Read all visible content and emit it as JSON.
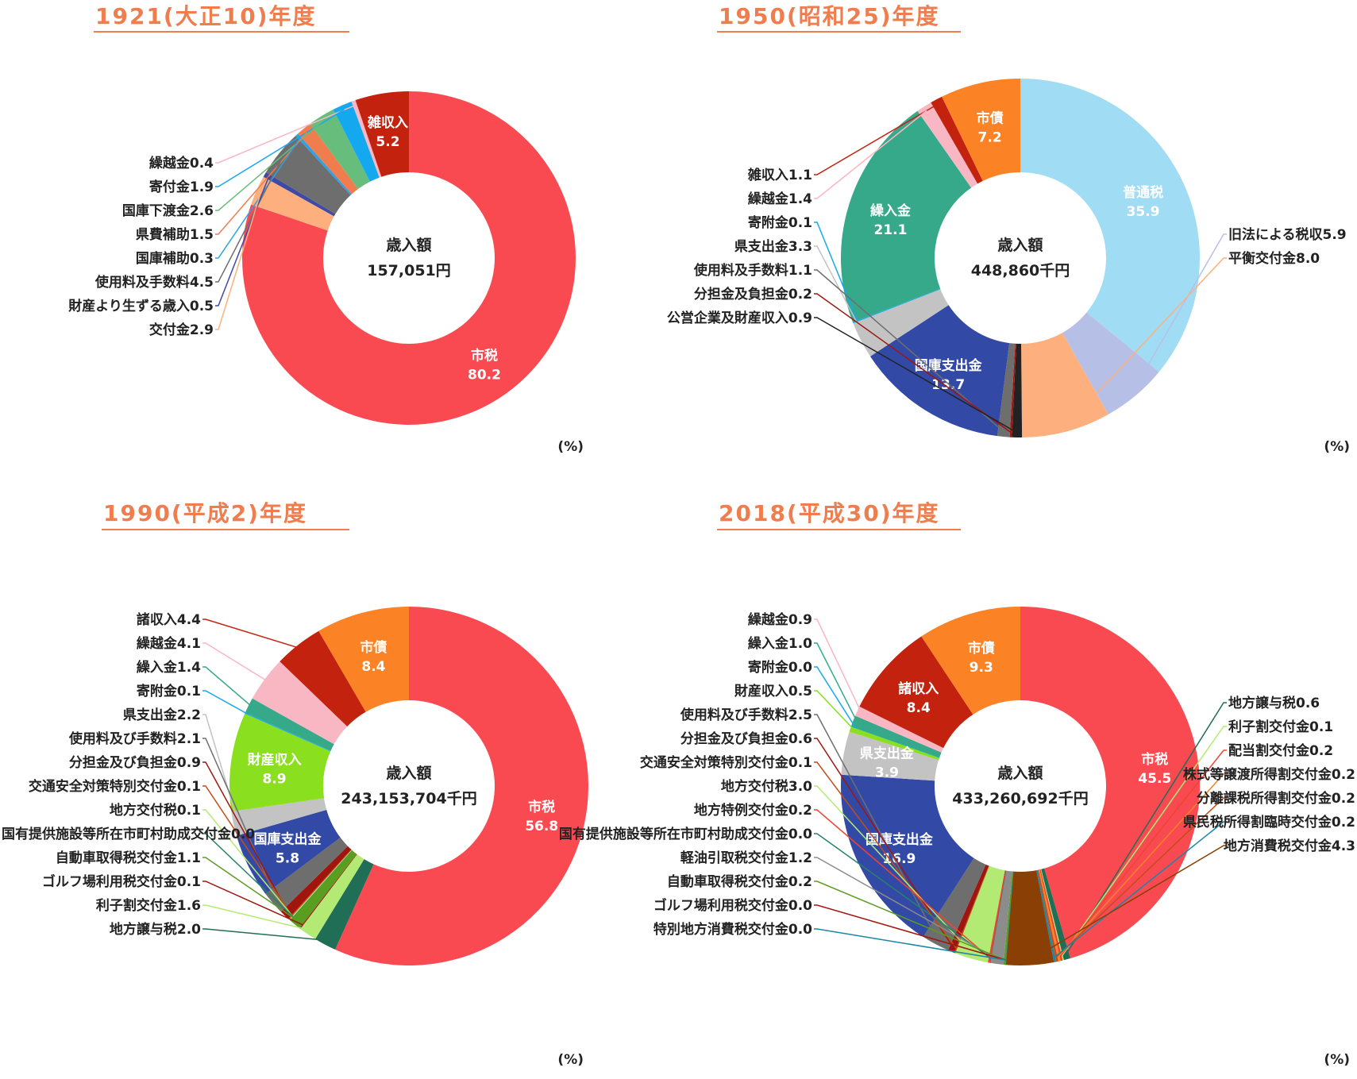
{
  "chart_data": [
    {
      "type": "pie",
      "title": "1921(大正10)年度",
      "center_label": "歳入額",
      "center_value": "157,051円",
      "unit": "(%)",
      "slices": [
        {
          "name": "市税",
          "value": 80.2,
          "color": "#f94a52",
          "inside": true
        },
        {
          "name": "交付金",
          "value": 2.9,
          "color": "#fdb07e"
        },
        {
          "name": "財産より生ずる歳入",
          "value": 0.5,
          "color": "#3f4aa6"
        },
        {
          "name": "使用料及手数料",
          "value": 4.5,
          "color": "#6e6e6e"
        },
        {
          "name": "国庫補助",
          "value": 0.3,
          "color": "#2ba3e4"
        },
        {
          "name": "県費補助",
          "value": 1.5,
          "color": "#ef7d4e"
        },
        {
          "name": "国庫下渡金",
          "value": 2.6,
          "color": "#67bd7c"
        },
        {
          "name": "寄付金",
          "value": 1.9,
          "color": "#14a9ee"
        },
        {
          "name": "繰越金",
          "value": 0.4,
          "color": "#f9b6c3"
        },
        {
          "name": "雑収入",
          "value": 5.2,
          "color": "#c3220f",
          "inside": true
        }
      ]
    },
    {
      "type": "pie",
      "title": "1950(昭和25)年度",
      "center_label": "歳入額",
      "center_value": "448,860千円",
      "unit": "(%)",
      "slices": [
        {
          "name": "普通税",
          "value": 35.9,
          "color": "#a1dcf5",
          "inside": true
        },
        {
          "name": "旧法による税収",
          "value": 5.9,
          "color": "#b6c0e6"
        },
        {
          "name": "平衡交付金",
          "value": 8.0,
          "color": "#fdb07e"
        },
        {
          "name": "公営企業及財産収入",
          "value": 0.9,
          "color": "#222222"
        },
        {
          "name": "分担金及負担金",
          "value": 0.2,
          "color": "#a0160f"
        },
        {
          "name": "使用料及手数料",
          "value": 1.1,
          "color": "#6e6e6e"
        },
        {
          "name": "国庫支出金",
          "value": 13.7,
          "color": "#3349a6",
          "inside": true
        },
        {
          "name": "県支出金",
          "value": 3.3,
          "color": "#c3c3c3"
        },
        {
          "name": "寄附金",
          "value": 0.1,
          "color": "#14a9ee"
        },
        {
          "name": "繰入金",
          "value": 21.1,
          "color": "#35a98a",
          "inside": true
        },
        {
          "name": "繰越金",
          "value": 1.4,
          "color": "#f9b6c3"
        },
        {
          "name": "雑収入",
          "value": 1.1,
          "color": "#c3220f"
        },
        {
          "name": "市債",
          "value": 7.2,
          "color": "#fc8226",
          "inside": true
        }
      ]
    },
    {
      "type": "pie",
      "title": "1990(平成2)年度",
      "center_label": "歳入額",
      "center_value": "243,153,704千円",
      "unit": "(%)",
      "slices": [
        {
          "name": "市税",
          "value": 56.8,
          "color": "#f94a52",
          "inside": true
        },
        {
          "name": "地方譲与税",
          "value": 2.0,
          "color": "#216e57"
        },
        {
          "name": "利子割交付金",
          "value": 1.6,
          "color": "#b3ea74"
        },
        {
          "name": "ゴルフ場利用税交付金",
          "value": 0.1,
          "color": "#a0160f"
        },
        {
          "name": "自動車取得税交付金",
          "value": 1.1,
          "color": "#5a9e20"
        },
        {
          "name": "国有提供施設等所在市町村助成交付金",
          "value": 0.0,
          "color": "#268268"
        },
        {
          "name": "地方交付税",
          "value": 0.1,
          "color": "#b3ea74"
        },
        {
          "name": "交通安全対策特別交付金",
          "value": 0.1,
          "color": "#c24d16"
        },
        {
          "name": "分担金及び負担金",
          "value": 0.9,
          "color": "#a0160f"
        },
        {
          "name": "使用料及び手数料",
          "value": 2.1,
          "color": "#6e6e6e"
        },
        {
          "name": "国庫支出金",
          "value": 5.8,
          "color": "#3349a6",
          "inside": true
        },
        {
          "name": "県支出金",
          "value": 2.2,
          "color": "#c3c3c3"
        },
        {
          "name": "財産収入",
          "value": 8.9,
          "color": "#8ae01e",
          "inside": true
        },
        {
          "name": "寄附金",
          "value": 0.1,
          "color": "#14a9ee"
        },
        {
          "name": "繰入金",
          "value": 1.4,
          "color": "#35a98a"
        },
        {
          "name": "繰越金",
          "value": 4.1,
          "color": "#f9b6c3"
        },
        {
          "name": "諸収入",
          "value": 4.4,
          "color": "#c3220f"
        },
        {
          "name": "市債",
          "value": 8.4,
          "color": "#fc8226",
          "inside": true
        }
      ]
    },
    {
      "type": "pie",
      "title": "2018(平成30)年度",
      "center_label": "歳入額",
      "center_value": "433,260,692千円",
      "unit": "(%)",
      "slices": [
        {
          "name": "市税",
          "value": 45.5,
          "color": "#f94a52",
          "inside": true
        },
        {
          "name": "地方譲与税",
          "value": 0.6,
          "color": "#216e57"
        },
        {
          "name": "利子割交付金",
          "value": 0.1,
          "color": "#b3ea74"
        },
        {
          "name": "配当割交付金",
          "value": 0.2,
          "color": "#ef4430"
        },
        {
          "name": "株式等譲渡所得割交付金",
          "value": 0.2,
          "color": "#fc8226"
        },
        {
          "name": "分離課税所得割交付金",
          "value": 0.2,
          "color": "#c24d16"
        },
        {
          "name": "県民税所得割臨時交付金",
          "value": 0.2,
          "color": "#1a86a9"
        },
        {
          "name": "地方消費税交付金",
          "value": 4.3,
          "color": "#8a3f04"
        },
        {
          "name": "ゴルフ場利用税交付金",
          "value": 0.0,
          "color": "#a0160f"
        },
        {
          "name": "特別地方消費税交付金",
          "value": 0.0,
          "color": "#1a86a9"
        },
        {
          "name": "自動車取得税交付金",
          "value": 0.2,
          "color": "#5a9e20"
        },
        {
          "name": "軽油引取税交付金",
          "value": 1.2,
          "color": "#8c8c8c"
        },
        {
          "name": "国有提供施設等所在市町村助成交付金",
          "value": 0.0,
          "color": "#268268"
        },
        {
          "name": "地方特例交付金",
          "value": 0.2,
          "color": "#ef4430"
        },
        {
          "name": "地方交付税",
          "value": 3.0,
          "color": "#b3ea74"
        },
        {
          "name": "交通安全対策特別交付金",
          "value": 0.1,
          "color": "#c24d16"
        },
        {
          "name": "分担金及び負担金",
          "value": 0.6,
          "color": "#a0160f"
        },
        {
          "name": "使用料及び手数料",
          "value": 2.5,
          "color": "#6e6e6e"
        },
        {
          "name": "国庫支出金",
          "value": 16.9,
          "color": "#3349a6",
          "inside": true
        },
        {
          "name": "県支出金",
          "value": 3.9,
          "color": "#c3c3c3",
          "inside": true
        },
        {
          "name": "財産収入",
          "value": 0.5,
          "color": "#8ae01e"
        },
        {
          "name": "寄附金",
          "value": 0.0,
          "color": "#14a9ee"
        },
        {
          "name": "繰入金",
          "value": 1.0,
          "color": "#35a98a"
        },
        {
          "name": "繰越金",
          "value": 0.9,
          "color": "#f9b6c3"
        },
        {
          "name": "諸収入",
          "value": 8.4,
          "color": "#c3220f",
          "inside": true
        },
        {
          "name": "市債",
          "value": 9.3,
          "color": "#fc8226",
          "inside": true
        }
      ]
    }
  ]
}
